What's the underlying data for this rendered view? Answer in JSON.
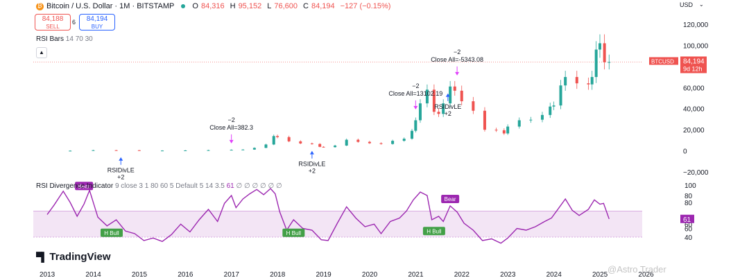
{
  "header": {
    "symbol": "Bitcoin / U.S. Dollar · 1M · BITSTAMP",
    "open_label": "O",
    "open_value": "84,316",
    "high_label": "H",
    "high_value": "95,152",
    "low_label": "L",
    "low_value": "76,600",
    "close_label": "C",
    "close_value": "84,194",
    "change": "−127 (−0.15%)"
  },
  "trade": {
    "sell_price": "84,188",
    "sell_label": "SELL",
    "spread": "6",
    "buy_price": "84,194",
    "buy_label": "BUY"
  },
  "indicator1": {
    "name": "RSI Bars",
    "params": "14 70 30"
  },
  "collapse_icon": "chevron-up-icon",
  "currency": "USD",
  "indicator2": {
    "name": "RSI Divergence Indicator",
    "params": "9 close 3 1 80 60 5 Default 5 14 3.5",
    "value": "61",
    "placeholders": "∅ ∅ ∅ ∅     ∅        ∅"
  },
  "branding": {
    "logo": "TradingView",
    "watermark": "@Astro Trader"
  },
  "colors": {
    "up": "#26a69a",
    "down": "#ef5350",
    "rsi_line": "#9c27b0",
    "band": "#f3e5f5",
    "price_line": "#ef5350",
    "blue_signal": "#2962ff",
    "magenta_signal": "#e040fb"
  },
  "chart_data": {
    "type": "candlestick",
    "price_axis_ticks": [
      "120,000",
      "100,000",
      "80,000",
      "60,000",
      "40,000",
      "20,000",
      "0",
      "−20,000"
    ],
    "price_ylim": [
      -20000,
      120000
    ],
    "x_axis_ticks": [
      "2013",
      "2014",
      "2015",
      "2016",
      "2017",
      "2018",
      "2019",
      "2020",
      "2021",
      "2022",
      "2023",
      "2024",
      "2025",
      "2026"
    ],
    "current_price_label": {
      "symbol": "BTCUSD",
      "price": "84,194",
      "countdown": "9d 12h"
    },
    "series": [
      {
        "x": 2013.0,
        "y": 100
      },
      {
        "x": 2013.5,
        "y": 120
      },
      {
        "x": 2014.0,
        "y": 600
      },
      {
        "x": 2014.5,
        "y": 550
      },
      {
        "x": 2015.0,
        "y": 250
      },
      {
        "x": 2015.5,
        "y": 260
      },
      {
        "x": 2016.0,
        "y": 400
      },
      {
        "x": 2016.5,
        "y": 650
      },
      {
        "x": 2017.0,
        "y": 1000
      },
      {
        "x": 2017.25,
        "y": 1200
      },
      {
        "x": 2017.5,
        "y": 2800
      },
      {
        "x": 2017.75,
        "y": 6000
      },
      {
        "x": 2017.92,
        "y": 14000
      },
      {
        "x": 2018.0,
        "y": 13000
      },
      {
        "x": 2018.25,
        "y": 9000
      },
      {
        "x": 2018.5,
        "y": 7000
      },
      {
        "x": 2018.75,
        "y": 6500
      },
      {
        "x": 2018.92,
        "y": 3800
      },
      {
        "x": 2019.0,
        "y": 3500
      },
      {
        "x": 2019.25,
        "y": 5000
      },
      {
        "x": 2019.5,
        "y": 10500
      },
      {
        "x": 2019.75,
        "y": 8500
      },
      {
        "x": 2020.0,
        "y": 7200
      },
      {
        "x": 2020.25,
        "y": 6500
      },
      {
        "x": 2020.5,
        "y": 9500
      },
      {
        "x": 2020.75,
        "y": 11500
      },
      {
        "x": 2020.92,
        "y": 19000
      },
      {
        "x": 2021.0,
        "y": 29000
      },
      {
        "x": 2021.1,
        "y": 45000
      },
      {
        "x": 2021.25,
        "y": 58000
      },
      {
        "x": 2021.4,
        "y": 37000
      },
      {
        "x": 2021.5,
        "y": 35000
      },
      {
        "x": 2021.6,
        "y": 45000
      },
      {
        "x": 2021.75,
        "y": 61000
      },
      {
        "x": 2021.85,
        "y": 57000
      },
      {
        "x": 2022.0,
        "y": 47000
      },
      {
        "x": 2022.25,
        "y": 38000
      },
      {
        "x": 2022.5,
        "y": 20000
      },
      {
        "x": 2022.75,
        "y": 19500
      },
      {
        "x": 2022.92,
        "y": 16500
      },
      {
        "x": 2023.0,
        "y": 23000
      },
      {
        "x": 2023.25,
        "y": 29000
      },
      {
        "x": 2023.5,
        "y": 29500
      },
      {
        "x": 2023.75,
        "y": 34000
      },
      {
        "x": 2023.92,
        "y": 42000
      },
      {
        "x": 2024.0,
        "y": 43000
      },
      {
        "x": 2024.15,
        "y": 62000
      },
      {
        "x": 2024.25,
        "y": 70000
      },
      {
        "x": 2024.5,
        "y": 64000
      },
      {
        "x": 2024.75,
        "y": 63000
      },
      {
        "x": 2024.83,
        "y": 70000
      },
      {
        "x": 2024.92,
        "y": 96000
      },
      {
        "x": 2025.0,
        "y": 102000
      },
      {
        "x": 2025.1,
        "y": 84000
      },
      {
        "x": 2025.2,
        "y": 84194
      }
    ],
    "signals": [
      {
        "date": 2014.6,
        "kind": "buy",
        "text": "RSIDivLE",
        "qty": "+2"
      },
      {
        "date": 2017.0,
        "kind": "sell",
        "qty": "−2",
        "text": "Close All=382.3"
      },
      {
        "date": 2018.75,
        "kind": "buy",
        "text": "RSIDivLE",
        "qty": "+2"
      },
      {
        "date": 2021.0,
        "kind": "sell",
        "qty": "−2",
        "text": "Close All=13102.19"
      },
      {
        "date": 2021.7,
        "kind": "buy",
        "text": "RSIDivLE",
        "qty": "+2"
      },
      {
        "date": 2021.9,
        "kind": "sell",
        "qty": "−2",
        "text": "Close All=-5343.08"
      }
    ],
    "rsi_panel": {
      "ticks": [
        "100",
        "80",
        "80",
        "60",
        "60",
        "40"
      ],
      "ylim": [
        20,
        100
      ],
      "current": "61",
      "band": [
        40,
        70
      ],
      "labels": [
        {
          "date": 2013.8,
          "rsi": 99,
          "text": "Bear"
        },
        {
          "date": 2014.4,
          "rsi": 45,
          "text": "H Bull"
        },
        {
          "date": 2018.35,
          "rsi": 45,
          "text": "H Bull"
        },
        {
          "date": 2021.4,
          "rsi": 47,
          "text": "H Bull"
        },
        {
          "date": 2021.75,
          "rsi": 84,
          "text": "Bear"
        }
      ],
      "values": [
        {
          "x": 2013.0,
          "y": 66
        },
        {
          "x": 2013.15,
          "y": 77
        },
        {
          "x": 2013.35,
          "y": 93
        },
        {
          "x": 2013.5,
          "y": 80
        },
        {
          "x": 2013.65,
          "y": 64
        },
        {
          "x": 2013.8,
          "y": 78
        },
        {
          "x": 2013.92,
          "y": 94
        },
        {
          "x": 2014.1,
          "y": 63
        },
        {
          "x": 2014.3,
          "y": 53
        },
        {
          "x": 2014.5,
          "y": 60
        },
        {
          "x": 2014.7,
          "y": 47
        },
        {
          "x": 2014.9,
          "y": 44
        },
        {
          "x": 2015.1,
          "y": 36
        },
        {
          "x": 2015.3,
          "y": 39
        },
        {
          "x": 2015.5,
          "y": 35
        },
        {
          "x": 2015.7,
          "y": 43
        },
        {
          "x": 2015.9,
          "y": 55
        },
        {
          "x": 2016.1,
          "y": 46
        },
        {
          "x": 2016.3,
          "y": 60
        },
        {
          "x": 2016.5,
          "y": 72
        },
        {
          "x": 2016.7,
          "y": 58
        },
        {
          "x": 2016.85,
          "y": 79
        },
        {
          "x": 2017.0,
          "y": 88
        },
        {
          "x": 2017.1,
          "y": 74
        },
        {
          "x": 2017.25,
          "y": 84
        },
        {
          "x": 2017.4,
          "y": 90
        },
        {
          "x": 2017.55,
          "y": 95
        },
        {
          "x": 2017.7,
          "y": 89
        },
        {
          "x": 2017.85,
          "y": 96
        },
        {
          "x": 2017.95,
          "y": 90
        },
        {
          "x": 2018.05,
          "y": 69
        },
        {
          "x": 2018.2,
          "y": 48
        },
        {
          "x": 2018.35,
          "y": 60
        },
        {
          "x": 2018.55,
          "y": 50
        },
        {
          "x": 2018.75,
          "y": 48
        },
        {
          "x": 2018.95,
          "y": 37
        },
        {
          "x": 2019.1,
          "y": 36
        },
        {
          "x": 2019.3,
          "y": 56
        },
        {
          "x": 2019.5,
          "y": 75
        },
        {
          "x": 2019.7,
          "y": 62
        },
        {
          "x": 2019.9,
          "y": 52
        },
        {
          "x": 2020.1,
          "y": 55
        },
        {
          "x": 2020.25,
          "y": 44
        },
        {
          "x": 2020.45,
          "y": 58
        },
        {
          "x": 2020.65,
          "y": 62
        },
        {
          "x": 2020.8,
          "y": 70
        },
        {
          "x": 2020.95,
          "y": 83
        },
        {
          "x": 2021.1,
          "y": 92
        },
        {
          "x": 2021.25,
          "y": 88
        },
        {
          "x": 2021.35,
          "y": 60
        },
        {
          "x": 2021.5,
          "y": 64
        },
        {
          "x": 2021.6,
          "y": 58
        },
        {
          "x": 2021.75,
          "y": 76
        },
        {
          "x": 2021.9,
          "y": 69
        },
        {
          "x": 2022.05,
          "y": 56
        },
        {
          "x": 2022.25,
          "y": 48
        },
        {
          "x": 2022.45,
          "y": 36
        },
        {
          "x": 2022.65,
          "y": 38
        },
        {
          "x": 2022.85,
          "y": 33
        },
        {
          "x": 2023.0,
          "y": 39
        },
        {
          "x": 2023.2,
          "y": 50
        },
        {
          "x": 2023.4,
          "y": 48
        },
        {
          "x": 2023.6,
          "y": 52
        },
        {
          "x": 2023.8,
          "y": 58
        },
        {
          "x": 2023.95,
          "y": 62
        },
        {
          "x": 2024.1,
          "y": 73
        },
        {
          "x": 2024.25,
          "y": 84
        },
        {
          "x": 2024.4,
          "y": 71
        },
        {
          "x": 2024.55,
          "y": 65
        },
        {
          "x": 2024.75,
          "y": 72
        },
        {
          "x": 2024.88,
          "y": 83
        },
        {
          "x": 2025.0,
          "y": 78
        },
        {
          "x": 2025.08,
          "y": 79
        },
        {
          "x": 2025.2,
          "y": 61
        }
      ]
    }
  }
}
